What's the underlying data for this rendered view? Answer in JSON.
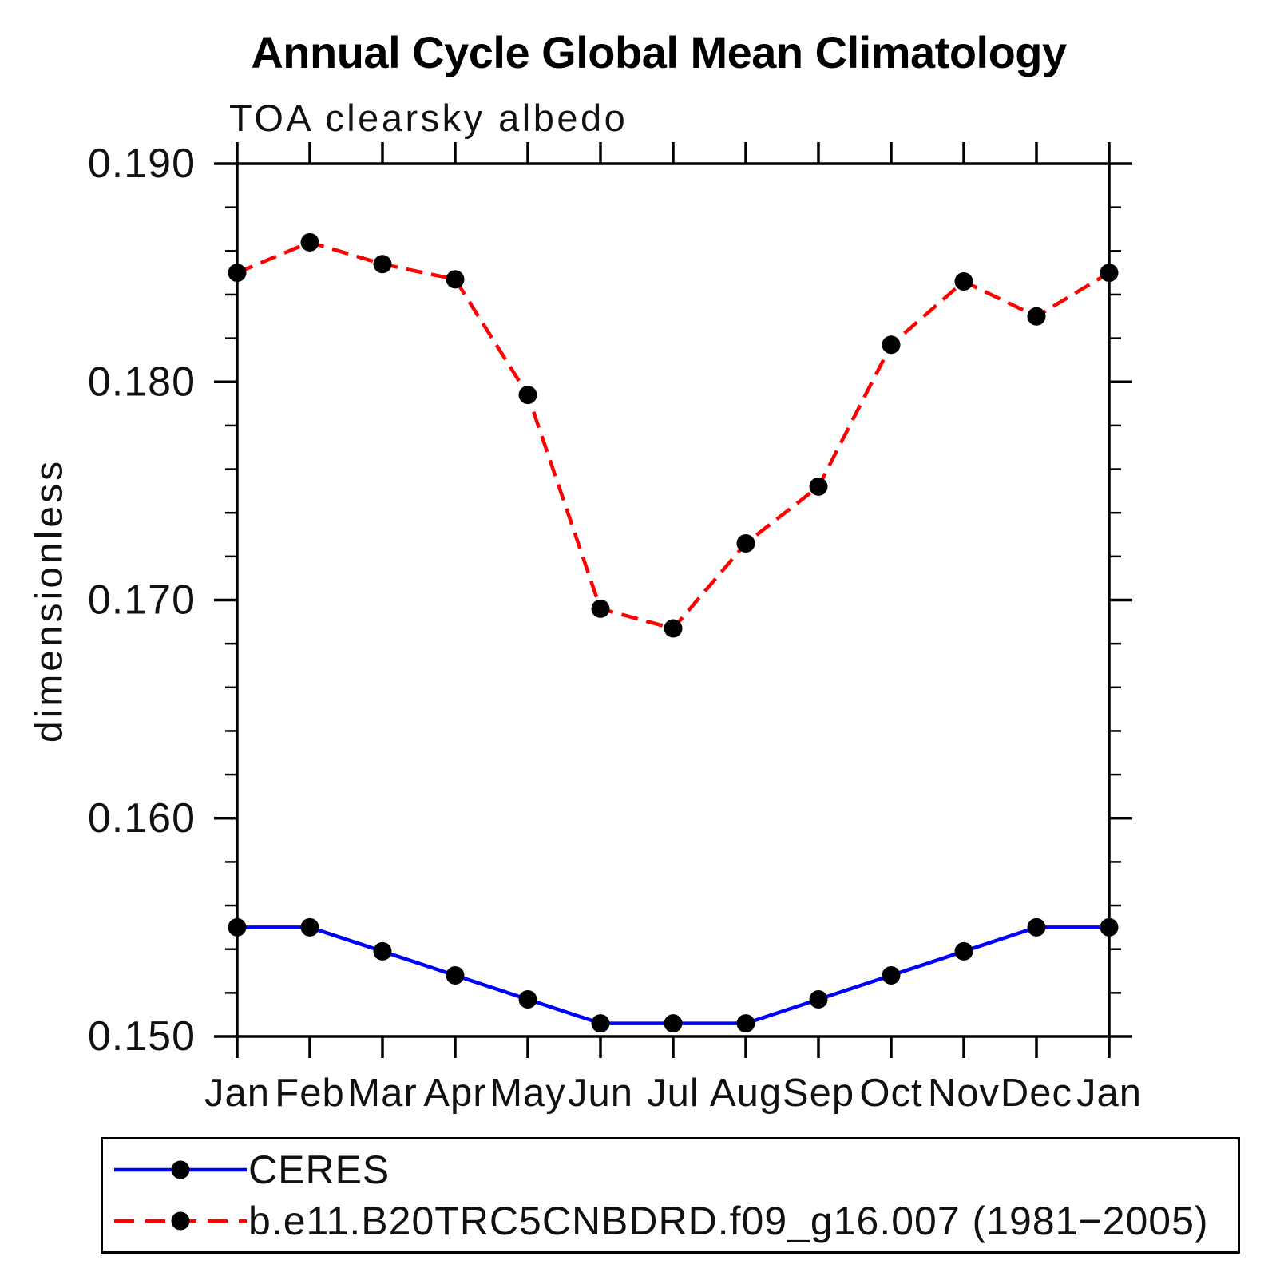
{
  "title": "Annual Cycle Global Mean Climatology",
  "subtitle": "TOA clearsky albedo",
  "y_axis_label": "dimensionless",
  "colors": {
    "ceres_line": "#0000ff",
    "model_line": "#ff0000",
    "marker": "#000000",
    "axis": "#000000"
  },
  "chart_data": {
    "type": "line",
    "title": "Annual Cycle Global Mean Climatology",
    "subtitle": "TOA clearsky albedo",
    "xlabel": "",
    "ylabel": "dimensionless",
    "categories": [
      "Jan",
      "Feb",
      "Mar",
      "Apr",
      "May",
      "Jun",
      "Jul",
      "Aug",
      "Sep",
      "Oct",
      "Nov",
      "Dec",
      "Jan"
    ],
    "ylim": [
      0.15,
      0.19
    ],
    "ytick_major": 0.01,
    "ytick_minor": 0.002,
    "ytick_labels": [
      "0.150",
      "0.160",
      "0.170",
      "0.180",
      "0.190"
    ],
    "grid": false,
    "legend_position": "below-plot-left",
    "series": [
      {
        "name": "CERES",
        "color": "#0000ff",
        "line_style": "solid",
        "marker": "filled-black-circle",
        "values": [
          0.155,
          0.155,
          0.1539,
          0.1528,
          0.1517,
          0.1506,
          0.1506,
          0.1506,
          0.1517,
          0.1528,
          0.1539,
          0.155,
          0.155
        ]
      },
      {
        "name": "b.e11.B20TRC5CNBDRD.f09_g16.007 (1981−2005)",
        "color": "#ff0000",
        "line_style": "dashed",
        "marker": "filled-black-circle",
        "values": [
          0.185,
          0.1864,
          0.1854,
          0.1847,
          0.1794,
          0.1696,
          0.1687,
          0.1726,
          0.1752,
          0.1817,
          0.1846,
          0.183,
          0.185
        ]
      }
    ]
  }
}
